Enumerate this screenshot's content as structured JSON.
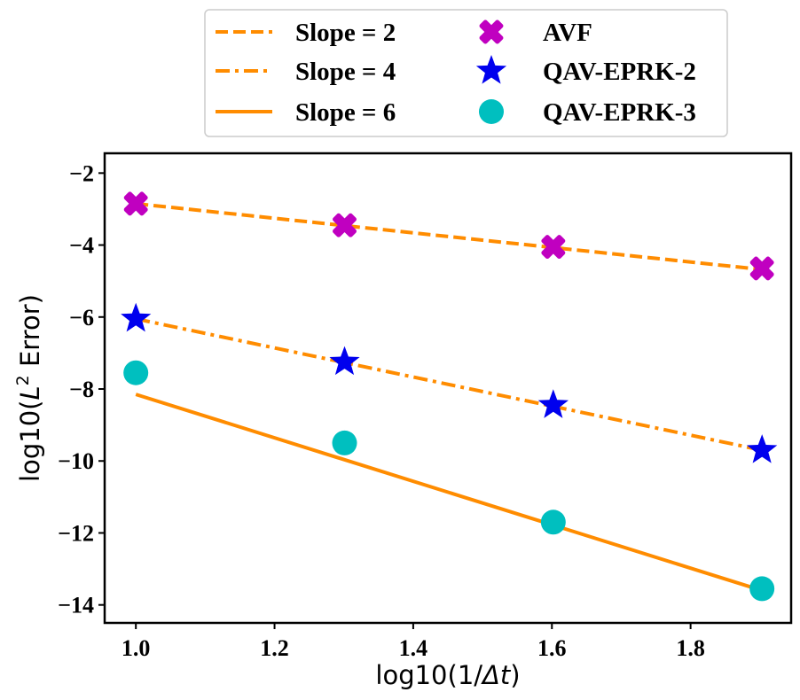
{
  "chart_data": {
    "type": "scatter",
    "title": "",
    "xlabel_prefix": "log10(1/",
    "xlabel_var": "Δt",
    "xlabel_suffix": ")",
    "ylabel_prefix": "log10(",
    "ylabel_var": "L",
    "ylabel_sup": "2",
    "ylabel_suffix": " Error)",
    "xlim": [
      0.955,
      1.945
    ],
    "ylim": [
      -14.5,
      -1.45
    ],
    "xticks": [
      1.0,
      1.2,
      1.4,
      1.6,
      1.8
    ],
    "xtick_labels": [
      "1.0",
      "1.2",
      "1.4",
      "1.6",
      "1.8"
    ],
    "yticks": [
      -2,
      -4,
      -6,
      -8,
      -10,
      -12,
      -14
    ],
    "ytick_labels": [
      "−2",
      "−4",
      "−6",
      "−8",
      "−10",
      "−12",
      "−14"
    ],
    "grid": false,
    "legend_position": "top-center outside",
    "reference_lines": [
      {
        "name": "Slope = 2",
        "style": "dashed",
        "color": "#ff8c00",
        "x": [
          1.0,
          1.903
        ],
        "y": [
          -2.85,
          -4.68
        ]
      },
      {
        "name": "Slope = 4",
        "style": "dashdot",
        "color": "#ff8c00",
        "x": [
          1.0,
          1.903
        ],
        "y": [
          -6.05,
          -9.7
        ]
      },
      {
        "name": "Slope = 6",
        "style": "solid",
        "color": "#ff8c00",
        "x": [
          1.0,
          1.903
        ],
        "y": [
          -8.15,
          -13.6
        ]
      }
    ],
    "series": [
      {
        "name": "AVF",
        "marker": "X",
        "color": "#c000c0",
        "x": [
          1.0,
          1.301,
          1.602,
          1.903
        ],
        "y": [
          -2.85,
          -3.45,
          -4.05,
          -4.65
        ]
      },
      {
        "name": "QAV-EPRK-2",
        "marker": "star",
        "color": "#0000ee",
        "x": [
          1.0,
          1.301,
          1.602,
          1.903
        ],
        "y": [
          -6.05,
          -7.25,
          -8.45,
          -9.7
        ]
      },
      {
        "name": "QAV-EPRK-3",
        "marker": "circle",
        "color": "#00bfbf",
        "x": [
          1.0,
          1.301,
          1.602,
          1.903
        ],
        "y": [
          -7.55,
          -9.5,
          -11.7,
          -13.55
        ]
      }
    ]
  }
}
